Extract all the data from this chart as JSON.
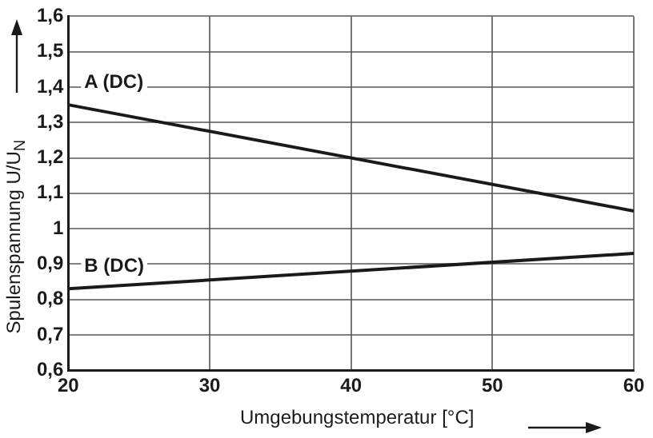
{
  "chart_data": {
    "type": "line",
    "xlabel": "Umgebungstemperatur [°C]",
    "ylabel": "Spulenspannung U/U$_{N}$",
    "x": [
      20,
      60
    ],
    "series": [
      {
        "name": "A (DC)",
        "color": "#1a1a1a",
        "values": [
          1.35,
          1.05
        ]
      },
      {
        "name": "B (DC)",
        "color": "#1a1a1a",
        "values": [
          0.83,
          0.93
        ]
      }
    ],
    "xlim": [
      20,
      60
    ],
    "xticks": [
      20,
      30,
      40,
      50,
      60
    ],
    "ylim": [
      0.6,
      1.6
    ],
    "yticks": [
      {
        "value": 0.6,
        "label": "0,6"
      },
      {
        "value": 0.7,
        "label": "0,7"
      },
      {
        "value": 0.8,
        "label": "0,8"
      },
      {
        "value": 0.9,
        "label": "0,9"
      },
      {
        "value": 1,
        "label": "1"
      },
      {
        "value": 1.1,
        "label": "1,1"
      },
      {
        "value": 1.2,
        "label": "1,2"
      },
      {
        "value": 1.3,
        "label": "1,3"
      },
      {
        "value": 1.4,
        "label": "1,4"
      },
      {
        "value": 1.5,
        "label": "1,5"
      },
      {
        "value": 1.6,
        "label": "1,6"
      }
    ],
    "grid": true,
    "legend": false,
    "marker": "none",
    "line_style": "solid"
  }
}
